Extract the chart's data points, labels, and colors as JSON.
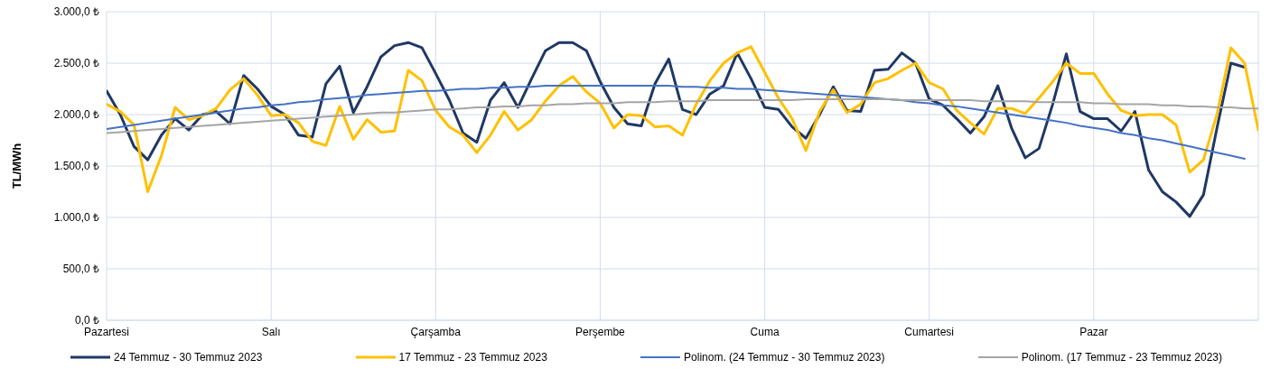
{
  "chart_data": {
    "type": "line",
    "ylabel": "TL/MWh",
    "categories": [
      "Pazartesi",
      null,
      null,
      null,
      null,
      null,
      null,
      null,
      null,
      null,
      null,
      null,
      "Salı",
      null,
      null,
      null,
      null,
      null,
      null,
      null,
      null,
      null,
      null,
      null,
      "Çarşamba",
      null,
      null,
      null,
      null,
      null,
      null,
      null,
      null,
      null,
      null,
      null,
      "Perşembe",
      null,
      null,
      null,
      null,
      null,
      null,
      null,
      null,
      null,
      null,
      null,
      "Cuma",
      null,
      null,
      null,
      null,
      null,
      null,
      null,
      null,
      null,
      null,
      null,
      "Cumartesi",
      null,
      null,
      null,
      null,
      null,
      null,
      null,
      null,
      null,
      null,
      null,
      "Pazar",
      null,
      null,
      null,
      null,
      null,
      null,
      null,
      null,
      null,
      null,
      null,
      null
    ],
    "ylim": [
      0,
      3000
    ],
    "yticks": [
      {
        "value": 0,
        "label": "0,0 ₺"
      },
      {
        "value": 500,
        "label": "500,0 ₺"
      },
      {
        "value": 1000,
        "label": "1.000,0 ₺"
      },
      {
        "value": 1500,
        "label": "1.500,0 ₺"
      },
      {
        "value": 2000,
        "label": "2.000,0 ₺"
      },
      {
        "value": 2500,
        "label": "2.500,0 ₺"
      },
      {
        "value": 3000,
        "label": "3.000,0 ₺"
      }
    ],
    "grid": true,
    "legend": "bottom",
    "marker": "none",
    "line_style": "solid",
    "series": [
      {
        "name": "24 Temmuz - 30 Temmuz 2023",
        "color": "#1f3864",
        "values": [
          2230,
          2000,
          1690,
          1560,
          1800,
          1960,
          1850,
          2000,
          2030,
          1910,
          2380,
          2250,
          2080,
          2000,
          1800,
          1780,
          2300,
          2470,
          2020,
          2270,
          2560,
          2670,
          2700,
          2650,
          2400,
          2140,
          1820,
          1730,
          2140,
          2310,
          2070,
          2350,
          2620,
          2700,
          2700,
          2620,
          2320,
          2070,
          1910,
          1890,
          2300,
          2540,
          2050,
          2000,
          2200,
          2280,
          2600,
          2350,
          2070,
          2050,
          1880,
          1770,
          2000,
          2270,
          2040,
          2030,
          2430,
          2440,
          2600,
          2500,
          2150,
          2090,
          1960,
          1820,
          1980,
          2280,
          1870,
          1580,
          1670,
          2100,
          2590,
          2030,
          1960,
          1960,
          1840,
          2030,
          1460,
          1250,
          1150,
          1010,
          1220,
          1880,
          2500,
          2460,
          null
        ]
      },
      {
        "name": "17 Temmuz - 23 Temmuz 2023",
        "color": "#ffc000",
        "values": [
          2100,
          2030,
          1900,
          1250,
          1600,
          2070,
          1950,
          1990,
          2060,
          2240,
          2350,
          2190,
          1990,
          2000,
          1920,
          1740,
          1700,
          2080,
          1760,
          1950,
          1830,
          1840,
          2430,
          2330,
          2040,
          1880,
          1800,
          1630,
          1800,
          2030,
          1850,
          1950,
          2130,
          2280,
          2370,
          2220,
          2110,
          1870,
          2000,
          1990,
          1880,
          1890,
          1800,
          2100,
          2330,
          2500,
          2600,
          2660,
          2410,
          2160,
          1960,
          1650,
          2030,
          2240,
          2020,
          2100,
          2310,
          2350,
          2430,
          2500,
          2310,
          2250,
          2040,
          1920,
          1810,
          2060,
          2060,
          2010,
          2160,
          2320,
          2500,
          2400,
          2400,
          2200,
          2040,
          1990,
          2000,
          2000,
          1900,
          1440,
          1560,
          2010,
          2650,
          2500,
          1850
        ]
      },
      {
        "name": "Polinom. (24 Temmuz - 30 Temmuz 2023)",
        "color": "#4472c4",
        "values": [
          1860,
          1880,
          1900,
          1920,
          1940,
          1960,
          1980,
          2000,
          2020,
          2040,
          2060,
          2070,
          2090,
          2100,
          2120,
          2130,
          2150,
          2160,
          2170,
          2190,
          2200,
          2210,
          2220,
          2230,
          2230,
          2240,
          2250,
          2250,
          2260,
          2260,
          2270,
          2270,
          2280,
          2280,
          2280,
          2280,
          2280,
          2280,
          2280,
          2280,
          2280,
          2280,
          2270,
          2270,
          2260,
          2260,
          2250,
          2250,
          2240,
          2230,
          2220,
          2210,
          2200,
          2190,
          2180,
          2170,
          2160,
          2150,
          2140,
          2120,
          2110,
          2090,
          2080,
          2060,
          2040,
          2020,
          2000,
          1980,
          1960,
          1940,
          1920,
          1890,
          1870,
          1850,
          1820,
          1800,
          1770,
          1750,
          1720,
          1690,
          1660,
          1630,
          1600,
          1570,
          null
        ]
      },
      {
        "name": "Polinom. (17 Temmuz - 23 Temmuz 2023)",
        "color": "#a5a5a5",
        "values": [
          1820,
          1830,
          1840,
          1850,
          1860,
          1870,
          1880,
          1890,
          1900,
          1910,
          1920,
          1930,
          1940,
          1950,
          1960,
          1970,
          1980,
          1990,
          2000,
          2010,
          2020,
          2020,
          2030,
          2040,
          2050,
          2050,
          2060,
          2070,
          2070,
          2080,
          2080,
          2090,
          2090,
          2100,
          2100,
          2110,
          2110,
          2110,
          2120,
          2120,
          2120,
          2130,
          2130,
          2130,
          2140,
          2140,
          2140,
          2140,
          2140,
          2140,
          2140,
          2150,
          2150,
          2150,
          2150,
          2150,
          2150,
          2150,
          2140,
          2140,
          2140,
          2140,
          2140,
          2140,
          2130,
          2130,
          2130,
          2130,
          2120,
          2120,
          2120,
          2120,
          2110,
          2110,
          2100,
          2100,
          2100,
          2090,
          2090,
          2080,
          2080,
          2070,
          2070,
          2060,
          2060
        ]
      }
    ]
  }
}
